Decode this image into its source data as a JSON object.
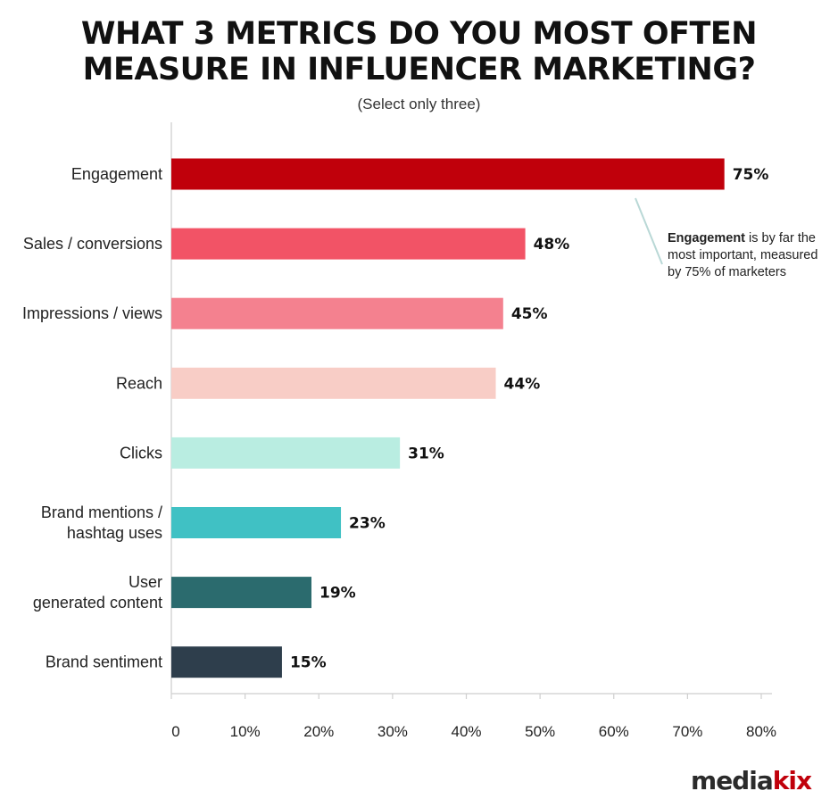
{
  "title_line1": "WHAT 3 METRICS DO YOU MOST OFTEN",
  "title_line2": "MEASURE IN INFLUENCER MARKETING?",
  "subtitle": "(Select only three)",
  "annotation": {
    "bold": "Engagement",
    "rest": " is by far the most important, measured by 75% of marketers"
  },
  "logo": {
    "part1": "media",
    "part2": "kix"
  },
  "chart_data": {
    "type": "bar",
    "orientation": "horizontal",
    "title": "WHAT 3 METRICS DO YOU MOST OFTEN MEASURE IN INFLUENCER MARKETING?",
    "subtitle": "(Select only three)",
    "categories": [
      [
        "Engagement"
      ],
      [
        "Sales / conversions"
      ],
      [
        "Impressions / views"
      ],
      [
        "Reach"
      ],
      [
        "Clicks"
      ],
      [
        "Brand mentions /",
        "hashtag uses"
      ],
      [
        "User",
        "generated content"
      ],
      [
        "Brand sentiment"
      ]
    ],
    "values": [
      75,
      48,
      45,
      44,
      31,
      23,
      19,
      15
    ],
    "value_labels": [
      "75%",
      "48%",
      "45%",
      "44%",
      "31%",
      "23%",
      "19%",
      "15%"
    ],
    "colors": [
      "#c0000b",
      "#f25366",
      "#f4818f",
      "#f8cdc6",
      "#b9ede1",
      "#40c1c4",
      "#2b6b6e",
      "#2e3e4c"
    ],
    "xlim": [
      0,
      80
    ],
    "xticks": [
      0,
      10,
      20,
      30,
      40,
      50,
      60,
      70,
      80
    ],
    "xtick_labels": [
      "0",
      "10%",
      "20%",
      "30%",
      "40%",
      "50%",
      "60%",
      "70%",
      "80%"
    ],
    "grid": false,
    "xlabel": "",
    "ylabel": ""
  }
}
